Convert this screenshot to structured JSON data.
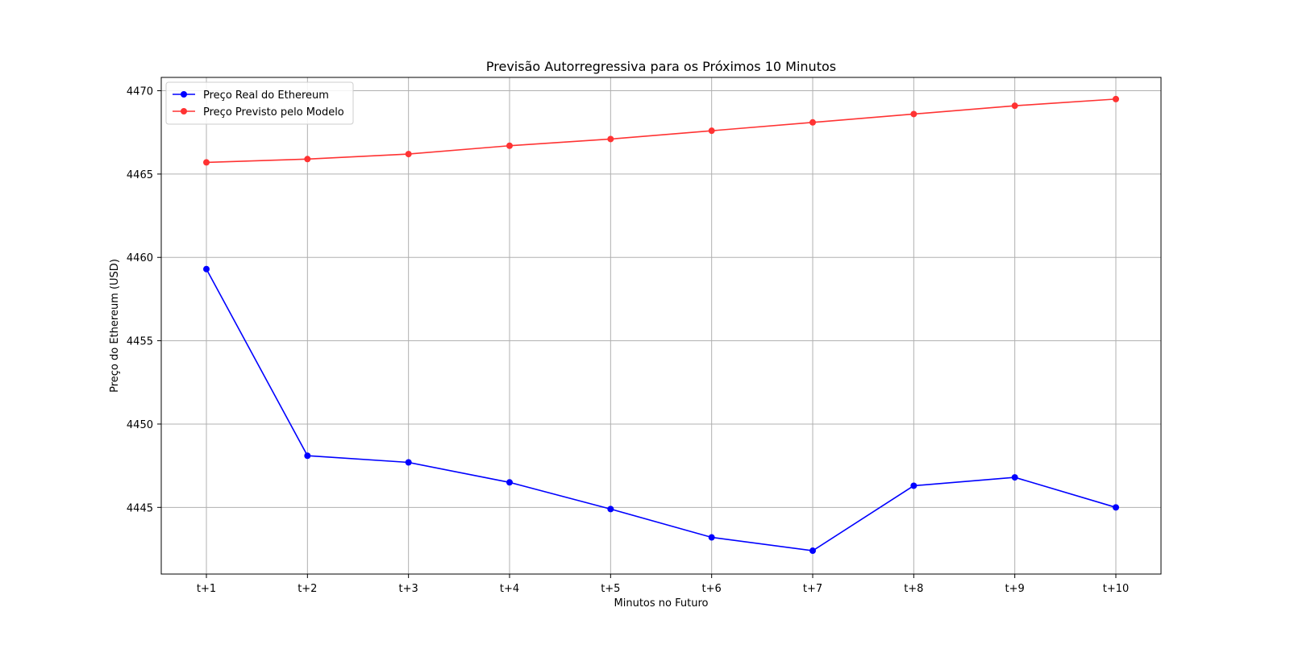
{
  "chart_data": {
    "type": "line",
    "title": "Previsão Autorregressiva para os Próximos 10 Minutos",
    "xlabel": "Minutos no Futuro",
    "ylabel": "Preço do Ethereum (USD)",
    "categories": [
      "t+1",
      "t+2",
      "t+3",
      "t+4",
      "t+5",
      "t+6",
      "t+7",
      "t+8",
      "t+9",
      "t+10"
    ],
    "ylim": [
      4441.0,
      4470.8
    ],
    "yticks": [
      4445,
      4450,
      4455,
      4460,
      4465,
      4470
    ],
    "grid": true,
    "legend_position": "top-left",
    "series": [
      {
        "name": "Preço Real do Ethereum",
        "color": "#0000ff",
        "values": [
          4459.3,
          4448.1,
          4447.7,
          4446.5,
          4444.9,
          4443.2,
          4442.4,
          4446.3,
          4446.8,
          4445.0
        ]
      },
      {
        "name": "Preço Previsto pelo Modelo",
        "color": "#ff3333",
        "values": [
          4465.7,
          4465.9,
          4466.2,
          4466.7,
          4467.1,
          4467.6,
          4468.1,
          4468.6,
          4469.1,
          4469.5
        ]
      }
    ]
  }
}
